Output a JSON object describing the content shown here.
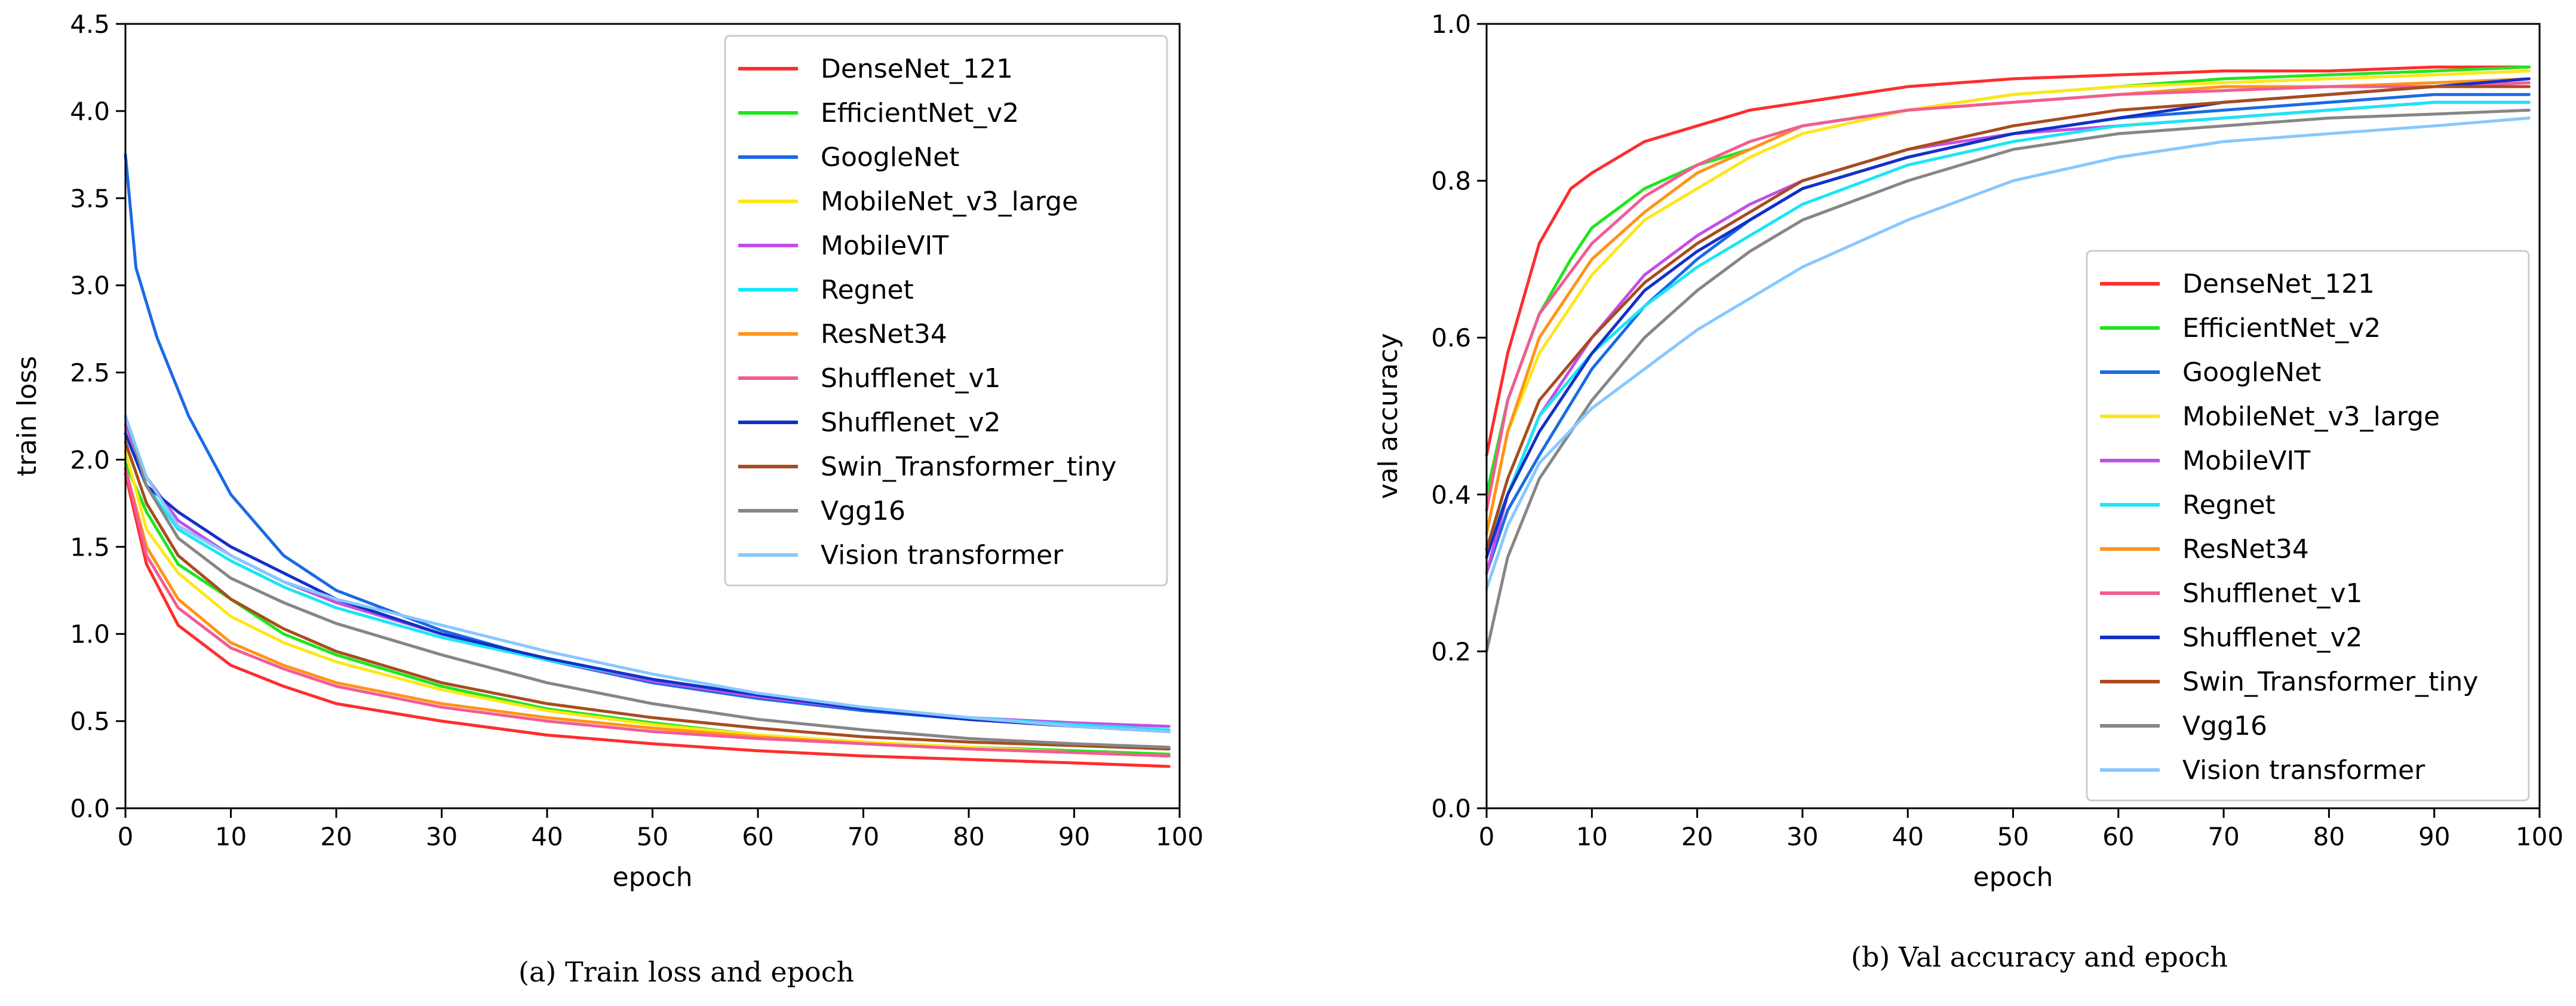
{
  "chart_data": [
    {
      "type": "line",
      "caption": "(a) Train loss and epoch",
      "xlabel": "epoch",
      "ylabel": "train loss",
      "xlim": [
        0,
        100
      ],
      "ylim": [
        0,
        4.5
      ],
      "xticks": [
        "0",
        "10",
        "20",
        "30",
        "40",
        "50",
        "60",
        "70",
        "80",
        "90",
        "100"
      ],
      "yticks": [
        "0.0",
        "0.5",
        "1.0",
        "1.5",
        "2.0",
        "2.5",
        "3.0",
        "3.5",
        "4.0",
        "4.5"
      ],
      "grid": false,
      "legend": "top-right",
      "series": [
        {
          "name": "DenseNet_121",
          "color": "#ff2d2d",
          "x": [
            0,
            2,
            5,
            10,
            15,
            20,
            30,
            40,
            50,
            60,
            70,
            80,
            90,
            99
          ],
          "values": [
            1.92,
            1.4,
            1.05,
            0.82,
            0.7,
            0.6,
            0.5,
            0.42,
            0.37,
            0.33,
            0.3,
            0.28,
            0.26,
            0.24
          ]
        },
        {
          "name": "EfficientNet_v2",
          "color": "#1ee61e",
          "x": [
            0,
            2,
            5,
            10,
            15,
            20,
            30,
            40,
            50,
            60,
            70,
            80,
            90,
            99
          ],
          "values": [
            1.98,
            1.7,
            1.4,
            1.2,
            1.0,
            0.88,
            0.7,
            0.57,
            0.49,
            0.42,
            0.38,
            0.35,
            0.33,
            0.31
          ]
        },
        {
          "name": "GoogleNet",
          "color": "#1a6ae6",
          "x": [
            0,
            1,
            3,
            6,
            10,
            15,
            20,
            30,
            40,
            50,
            60,
            70,
            80,
            90,
            99
          ],
          "values": [
            3.75,
            3.1,
            2.7,
            2.25,
            1.8,
            1.45,
            1.25,
            1.02,
            0.85,
            0.72,
            0.63,
            0.56,
            0.51,
            0.47,
            0.44
          ]
        },
        {
          "name": "MobileNet_v3_large",
          "color": "#ffe619",
          "x": [
            0,
            2,
            5,
            10,
            15,
            20,
            30,
            40,
            50,
            60,
            70,
            80,
            90,
            99
          ],
          "values": [
            2.05,
            1.6,
            1.35,
            1.1,
            0.95,
            0.84,
            0.68,
            0.56,
            0.48,
            0.42,
            0.38,
            0.35,
            0.32,
            0.3
          ]
        },
        {
          "name": "MobileVIT",
          "color": "#c24fe6",
          "x": [
            0,
            2,
            5,
            10,
            15,
            20,
            30,
            40,
            50,
            60,
            70,
            80,
            90,
            99
          ],
          "values": [
            2.2,
            1.9,
            1.65,
            1.45,
            1.3,
            1.18,
            1.0,
            0.85,
            0.73,
            0.64,
            0.57,
            0.52,
            0.49,
            0.47
          ]
        },
        {
          "name": "Regnet",
          "color": "#19e6f5",
          "x": [
            0,
            2,
            5,
            10,
            15,
            20,
            30,
            40,
            50,
            60,
            70,
            80,
            90,
            99
          ],
          "values": [
            2.15,
            1.85,
            1.6,
            1.42,
            1.27,
            1.15,
            0.98,
            0.85,
            0.74,
            0.65,
            0.58,
            0.52,
            0.48,
            0.45
          ]
        },
        {
          "name": "ResNet34",
          "color": "#ff9419",
          "x": [
            0,
            2,
            5,
            10,
            15,
            20,
            30,
            40,
            50,
            60,
            70,
            80,
            90,
            99
          ],
          "values": [
            1.95,
            1.5,
            1.2,
            0.95,
            0.82,
            0.72,
            0.6,
            0.52,
            0.46,
            0.41,
            0.37,
            0.34,
            0.32,
            0.3
          ]
        },
        {
          "name": "Shufflenet_v1",
          "color": "#f25c96",
          "x": [
            0,
            2,
            5,
            10,
            15,
            20,
            30,
            40,
            50,
            60,
            70,
            80,
            90,
            99
          ],
          "values": [
            1.95,
            1.45,
            1.15,
            0.92,
            0.8,
            0.7,
            0.58,
            0.5,
            0.44,
            0.4,
            0.37,
            0.34,
            0.32,
            0.3
          ]
        },
        {
          "name": "Shufflenet_v2",
          "color": "#1430c8",
          "x": [
            0,
            2,
            5,
            10,
            15,
            20,
            30,
            40,
            50,
            60,
            70,
            80,
            90,
            99
          ],
          "values": [
            2.15,
            1.85,
            1.7,
            1.5,
            1.35,
            1.2,
            1.0,
            0.86,
            0.74,
            0.65,
            0.57,
            0.51,
            0.47,
            0.44
          ]
        },
        {
          "name": "Swin_Transformer_tiny",
          "color": "#a84c1e",
          "x": [
            0,
            2,
            5,
            10,
            15,
            20,
            30,
            40,
            50,
            60,
            70,
            80,
            90,
            99
          ],
          "values": [
            2.1,
            1.75,
            1.45,
            1.2,
            1.03,
            0.9,
            0.72,
            0.6,
            0.52,
            0.46,
            0.41,
            0.38,
            0.36,
            0.34
          ]
        },
        {
          "name": "Vgg16",
          "color": "#868686",
          "x": [
            0,
            2,
            5,
            10,
            15,
            20,
            30,
            40,
            50,
            60,
            70,
            80,
            90,
            99
          ],
          "values": [
            2.25,
            1.85,
            1.55,
            1.32,
            1.18,
            1.06,
            0.88,
            0.72,
            0.6,
            0.51,
            0.45,
            0.4,
            0.37,
            0.35
          ]
        },
        {
          "name": "Vision transformer",
          "color": "#87c8ff",
          "x": [
            0,
            2,
            5,
            10,
            15,
            20,
            30,
            40,
            50,
            60,
            70,
            80,
            90,
            99
          ],
          "values": [
            2.25,
            1.9,
            1.62,
            1.45,
            1.3,
            1.2,
            1.05,
            0.9,
            0.77,
            0.66,
            0.58,
            0.52,
            0.47,
            0.44
          ]
        }
      ]
    },
    {
      "type": "line",
      "caption": "(b) Val accuracy and epoch",
      "xlabel": "epoch",
      "ylabel": "val accuracy",
      "xlim": [
        0,
        100
      ],
      "ylim": [
        0,
        1.0
      ],
      "xticks": [
        "0",
        "10",
        "20",
        "30",
        "40",
        "50",
        "60",
        "70",
        "80",
        "90",
        "100"
      ],
      "yticks": [
        "0.0",
        "0.2",
        "0.4",
        "0.6",
        "0.8",
        "1.0"
      ],
      "grid": false,
      "legend": "center-right",
      "series": [
        {
          "name": "DenseNet_121",
          "color": "#ff2d2d",
          "x": [
            0,
            2,
            5,
            8,
            10,
            15,
            20,
            25,
            30,
            40,
            50,
            60,
            70,
            80,
            90,
            99
          ],
          "values": [
            0.45,
            0.58,
            0.72,
            0.79,
            0.81,
            0.85,
            0.87,
            0.89,
            0.9,
            0.92,
            0.93,
            0.935,
            0.94,
            0.94,
            0.945,
            0.945
          ]
        },
        {
          "name": "EfficientNet_v2",
          "color": "#1ee61e",
          "x": [
            0,
            2,
            5,
            8,
            10,
            15,
            20,
            25,
            30,
            40,
            50,
            60,
            70,
            80,
            90,
            99
          ],
          "values": [
            0.4,
            0.52,
            0.63,
            0.7,
            0.74,
            0.79,
            0.82,
            0.84,
            0.87,
            0.89,
            0.91,
            0.92,
            0.93,
            0.935,
            0.94,
            0.945
          ]
        },
        {
          "name": "GoogleNet",
          "color": "#1a6ae6",
          "x": [
            0,
            2,
            5,
            10,
            15,
            20,
            25,
            30,
            40,
            50,
            60,
            70,
            80,
            90,
            99
          ],
          "values": [
            0.3,
            0.38,
            0.45,
            0.56,
            0.64,
            0.7,
            0.75,
            0.79,
            0.83,
            0.86,
            0.88,
            0.89,
            0.9,
            0.91,
            0.91
          ]
        },
        {
          "name": "MobileNet_v3_large",
          "color": "#ffe619",
          "x": [
            0,
            2,
            5,
            10,
            15,
            20,
            25,
            30,
            40,
            50,
            60,
            70,
            80,
            90,
            99
          ],
          "values": [
            0.35,
            0.48,
            0.58,
            0.68,
            0.75,
            0.79,
            0.83,
            0.86,
            0.89,
            0.91,
            0.92,
            0.925,
            0.93,
            0.935,
            0.94
          ]
        },
        {
          "name": "MobileVIT",
          "color": "#c24fe6",
          "x": [
            0,
            2,
            5,
            10,
            15,
            20,
            25,
            30,
            40,
            50,
            60,
            70,
            80,
            90,
            99
          ],
          "values": [
            0.3,
            0.4,
            0.5,
            0.6,
            0.68,
            0.73,
            0.77,
            0.8,
            0.84,
            0.86,
            0.87,
            0.88,
            0.89,
            0.9,
            0.9
          ]
        },
        {
          "name": "Regnet",
          "color": "#19e6f5",
          "x": [
            0,
            2,
            5,
            10,
            15,
            20,
            25,
            30,
            40,
            50,
            60,
            70,
            80,
            90,
            99
          ],
          "values": [
            0.33,
            0.4,
            0.5,
            0.58,
            0.64,
            0.69,
            0.73,
            0.77,
            0.82,
            0.85,
            0.87,
            0.88,
            0.89,
            0.9,
            0.9
          ]
        },
        {
          "name": "ResNet34",
          "color": "#ff9419",
          "x": [
            0,
            2,
            5,
            10,
            15,
            20,
            25,
            30,
            40,
            50,
            60,
            70,
            80,
            90,
            99
          ],
          "values": [
            0.35,
            0.48,
            0.6,
            0.7,
            0.76,
            0.81,
            0.84,
            0.87,
            0.89,
            0.9,
            0.91,
            0.92,
            0.92,
            0.925,
            0.93
          ]
        },
        {
          "name": "Shufflenet_v1",
          "color": "#f25c96",
          "x": [
            0,
            2,
            5,
            10,
            15,
            20,
            25,
            30,
            40,
            50,
            60,
            70,
            80,
            90,
            99
          ],
          "values": [
            0.38,
            0.52,
            0.63,
            0.72,
            0.78,
            0.82,
            0.85,
            0.87,
            0.89,
            0.9,
            0.91,
            0.915,
            0.92,
            0.92,
            0.925
          ]
        },
        {
          "name": "Shufflenet_v2",
          "color": "#1430c8",
          "x": [
            0,
            2,
            5,
            10,
            15,
            20,
            25,
            30,
            40,
            50,
            60,
            70,
            80,
            90,
            99
          ],
          "values": [
            0.32,
            0.4,
            0.48,
            0.58,
            0.66,
            0.71,
            0.75,
            0.79,
            0.83,
            0.86,
            0.88,
            0.9,
            0.91,
            0.92,
            0.93
          ]
        },
        {
          "name": "Swin_Transformer_tiny",
          "color": "#a84c1e",
          "x": [
            0,
            2,
            5,
            10,
            15,
            20,
            25,
            30,
            40,
            50,
            60,
            70,
            80,
            90,
            99
          ],
          "values": [
            0.33,
            0.42,
            0.52,
            0.6,
            0.67,
            0.72,
            0.76,
            0.8,
            0.84,
            0.87,
            0.89,
            0.9,
            0.91,
            0.92,
            0.92
          ]
        },
        {
          "name": "Vgg16",
          "color": "#868686",
          "x": [
            0,
            2,
            5,
            10,
            15,
            20,
            25,
            30,
            40,
            50,
            60,
            70,
            80,
            90,
            99
          ],
          "values": [
            0.2,
            0.32,
            0.42,
            0.52,
            0.6,
            0.66,
            0.71,
            0.75,
            0.8,
            0.84,
            0.86,
            0.87,
            0.88,
            0.885,
            0.89
          ]
        },
        {
          "name": "Vision transformer",
          "color": "#87c8ff",
          "x": [
            0,
            2,
            5,
            10,
            15,
            20,
            25,
            30,
            40,
            50,
            60,
            70,
            80,
            90,
            99
          ],
          "values": [
            0.28,
            0.36,
            0.44,
            0.51,
            0.56,
            0.61,
            0.65,
            0.69,
            0.75,
            0.8,
            0.83,
            0.85,
            0.86,
            0.87,
            0.88
          ]
        }
      ]
    }
  ]
}
